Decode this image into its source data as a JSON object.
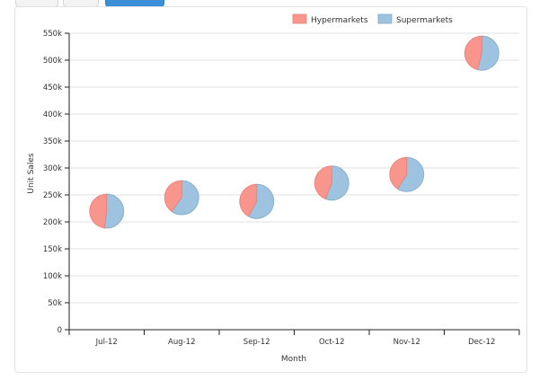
{
  "toolbar": {
    "buttons": [
      "",
      "",
      ""
    ]
  },
  "chart_data": {
    "type": "scatter",
    "subtype": "pie-markers",
    "xlabel": "Month",
    "ylabel": "Unit Sales",
    "categories": [
      "Jul-12",
      "Aug-12",
      "Sep-12",
      "Oct-12",
      "Nov-12",
      "Dec-12"
    ],
    "totals": [
      220000,
      245000,
      238000,
      272000,
      288000,
      513000
    ],
    "series": [
      {
        "name": "Hypermarkets",
        "color": "#f8968d",
        "values": [
          48,
          40,
          42,
          44,
          41,
          46
        ]
      },
      {
        "name": "Supermarkets",
        "color": "#9dc3e0",
        "values": [
          52,
          60,
          58,
          56,
          59,
          54
        ]
      }
    ],
    "ylim": [
      0,
      550000
    ],
    "yticks": [
      0,
      50000,
      100000,
      150000,
      200000,
      250000,
      300000,
      350000,
      400000,
      450000,
      500000,
      550000
    ],
    "ytick_labels": [
      "0",
      "50k",
      "100k",
      "150k",
      "200k",
      "250k",
      "300k",
      "350k",
      "400k",
      "450k",
      "500k",
      "550k"
    ],
    "grid": true,
    "legend_position": "top-right"
  }
}
